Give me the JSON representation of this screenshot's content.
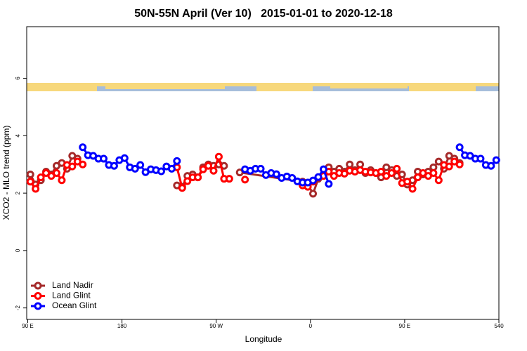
{
  "chart_data": {
    "type": "line",
    "title": "50N-55N April (Ver 10)   2015-01-01 to 2020-12-18",
    "x_label": "Longitude",
    "y_label": "XCO2 - MLO trend (ppm)",
    "xlim": [
      89,
      540
    ],
    "ylim": [
      -2.4,
      7.8
    ],
    "xticks": [
      {
        "value": 90,
        "label": "90 E"
      },
      180,
      {
        "value": 270,
        "label": "90 W"
      },
      {
        "value": 360,
        "label": "0"
      },
      {
        "value": 450,
        "label": "90 E"
      },
      540
    ],
    "yticks": [
      -2,
      0,
      2,
      4,
      6
    ],
    "legend": "bottom-left",
    "series": [
      {
        "name": "Land Nadir",
        "color": "#a52a2a",
        "x": [
          92.5,
          97.5,
          102.5,
          107.5,
          112.5,
          117.5,
          122.5,
          127.5,
          132.5,
          137.5,
          142.5,
          232.5,
          237.5,
          242.5,
          247.5,
          252.5,
          257.5,
          262.5,
          267.5,
          272.5,
          277.5,
          282.5,
          292.5,
          352.5,
          357.5,
          362.5,
          367.5,
          372.5,
          377.5,
          382.5,
          387.5,
          392.5,
          397.5,
          402.5,
          407.5,
          412.5,
          417.5,
          422.5,
          427.5,
          432.5,
          437.5,
          442.5,
          447.5,
          452.5,
          457.5,
          462.5,
          467.5,
          472.5,
          477.5,
          482.5,
          487.5,
          492.5,
          497.5,
          502.5
        ],
        "values": [
          2.65,
          2.3,
          2.45,
          2.75,
          2.65,
          2.95,
          3.05,
          2.85,
          3.3,
          3.2,
          null,
          2.27,
          2.22,
          2.6,
          2.65,
          2.55,
          2.9,
          3.0,
          2.95,
          3.0,
          2.95,
          null,
          2.72,
          2.4,
          2.3,
          1.98,
          2.5,
          2.6,
          2.9,
          2.75,
          2.85,
          2.75,
          3.0,
          2.8,
          3.0,
          2.7,
          2.8,
          2.7,
          2.55,
          2.9,
          2.8,
          2.6,
          2.65,
          2.3,
          2.45,
          2.75,
          2.65,
          2.75,
          2.9,
          3.1,
          2.85,
          3.3,
          3.2,
          3.05
        ]
      },
      {
        "name": "Land Glint",
        "color": "#ff0000",
        "x": [
          92.5,
          97.5,
          102.5,
          107.5,
          112.5,
          117.5,
          122.5,
          127.5,
          132.5,
          137.5,
          142.5,
          187.5,
          232.5,
          237.5,
          242.5,
          247.5,
          252.5,
          257.5,
          262.5,
          267.5,
          272.5,
          277.5,
          282.5,
          290,
          297.5,
          347.5,
          352.5,
          357.5,
          362.5,
          367.5,
          372.5,
          377.5,
          382.5,
          387.5,
          392.5,
          397.5,
          402.5,
          407.5,
          412.5,
          417.5,
          422.5,
          427.5,
          432.5,
          437.5,
          442.5,
          447.5,
          452.5,
          457.5,
          462.5,
          467.5,
          472.5,
          477.5,
          482.5,
          487.5,
          492.5,
          497.5,
          502.5
        ],
        "values": [
          2.4,
          2.15,
          2.55,
          2.7,
          2.6,
          2.7,
          2.45,
          2.98,
          2.93,
          3.1,
          3.0,
          null,
          2.9,
          2.18,
          2.42,
          2.55,
          2.55,
          2.83,
          2.95,
          2.78,
          3.27,
          2.5,
          2.5,
          null,
          2.47,
          null,
          2.27,
          2.22,
          2.4,
          2.55,
          2.6,
          2.75,
          2.6,
          2.7,
          2.68,
          2.78,
          2.75,
          2.8,
          2.75,
          2.72,
          2.7,
          2.75,
          2.6,
          2.7,
          2.85,
          2.35,
          2.4,
          2.15,
          2.55,
          2.7,
          2.6,
          2.7,
          2.45,
          2.98,
          2.93,
          3.1,
          3.0
        ]
      },
      {
        "name": "Ocean Glint",
        "color": "#0000ff",
        "x": [
          142.5,
          147.5,
          152.5,
          157.5,
          162.5,
          167.5,
          172.5,
          177.5,
          182.5,
          187.5,
          192.5,
          197.5,
          202.5,
          207.5,
          212.5,
          217.5,
          222.5,
          227.5,
          232.5,
          265,
          297.5,
          302.5,
          307.5,
          312.5,
          317.5,
          322.5,
          327.5,
          332.5,
          337.5,
          342.5,
          347.5,
          352.5,
          357.5,
          362.5,
          367.5,
          372.5,
          377.5,
          440,
          502.5,
          507.5,
          512.5,
          517.5,
          522.5,
          527.5,
          532.5,
          537.5
        ],
        "values": [
          3.6,
          3.32,
          3.3,
          3.2,
          3.2,
          2.98,
          2.95,
          3.15,
          3.22,
          2.9,
          2.85,
          2.98,
          2.73,
          2.83,
          2.8,
          2.76,
          2.93,
          2.85,
          3.12,
          null,
          2.83,
          2.78,
          2.85,
          2.85,
          2.63,
          2.7,
          2.66,
          2.53,
          2.58,
          2.53,
          2.41,
          2.37,
          2.37,
          2.44,
          2.56,
          2.83,
          2.32,
          null,
          3.6,
          3.32,
          3.3,
          3.2,
          3.2,
          2.98,
          2.95,
          3.15
        ]
      }
    ]
  }
}
